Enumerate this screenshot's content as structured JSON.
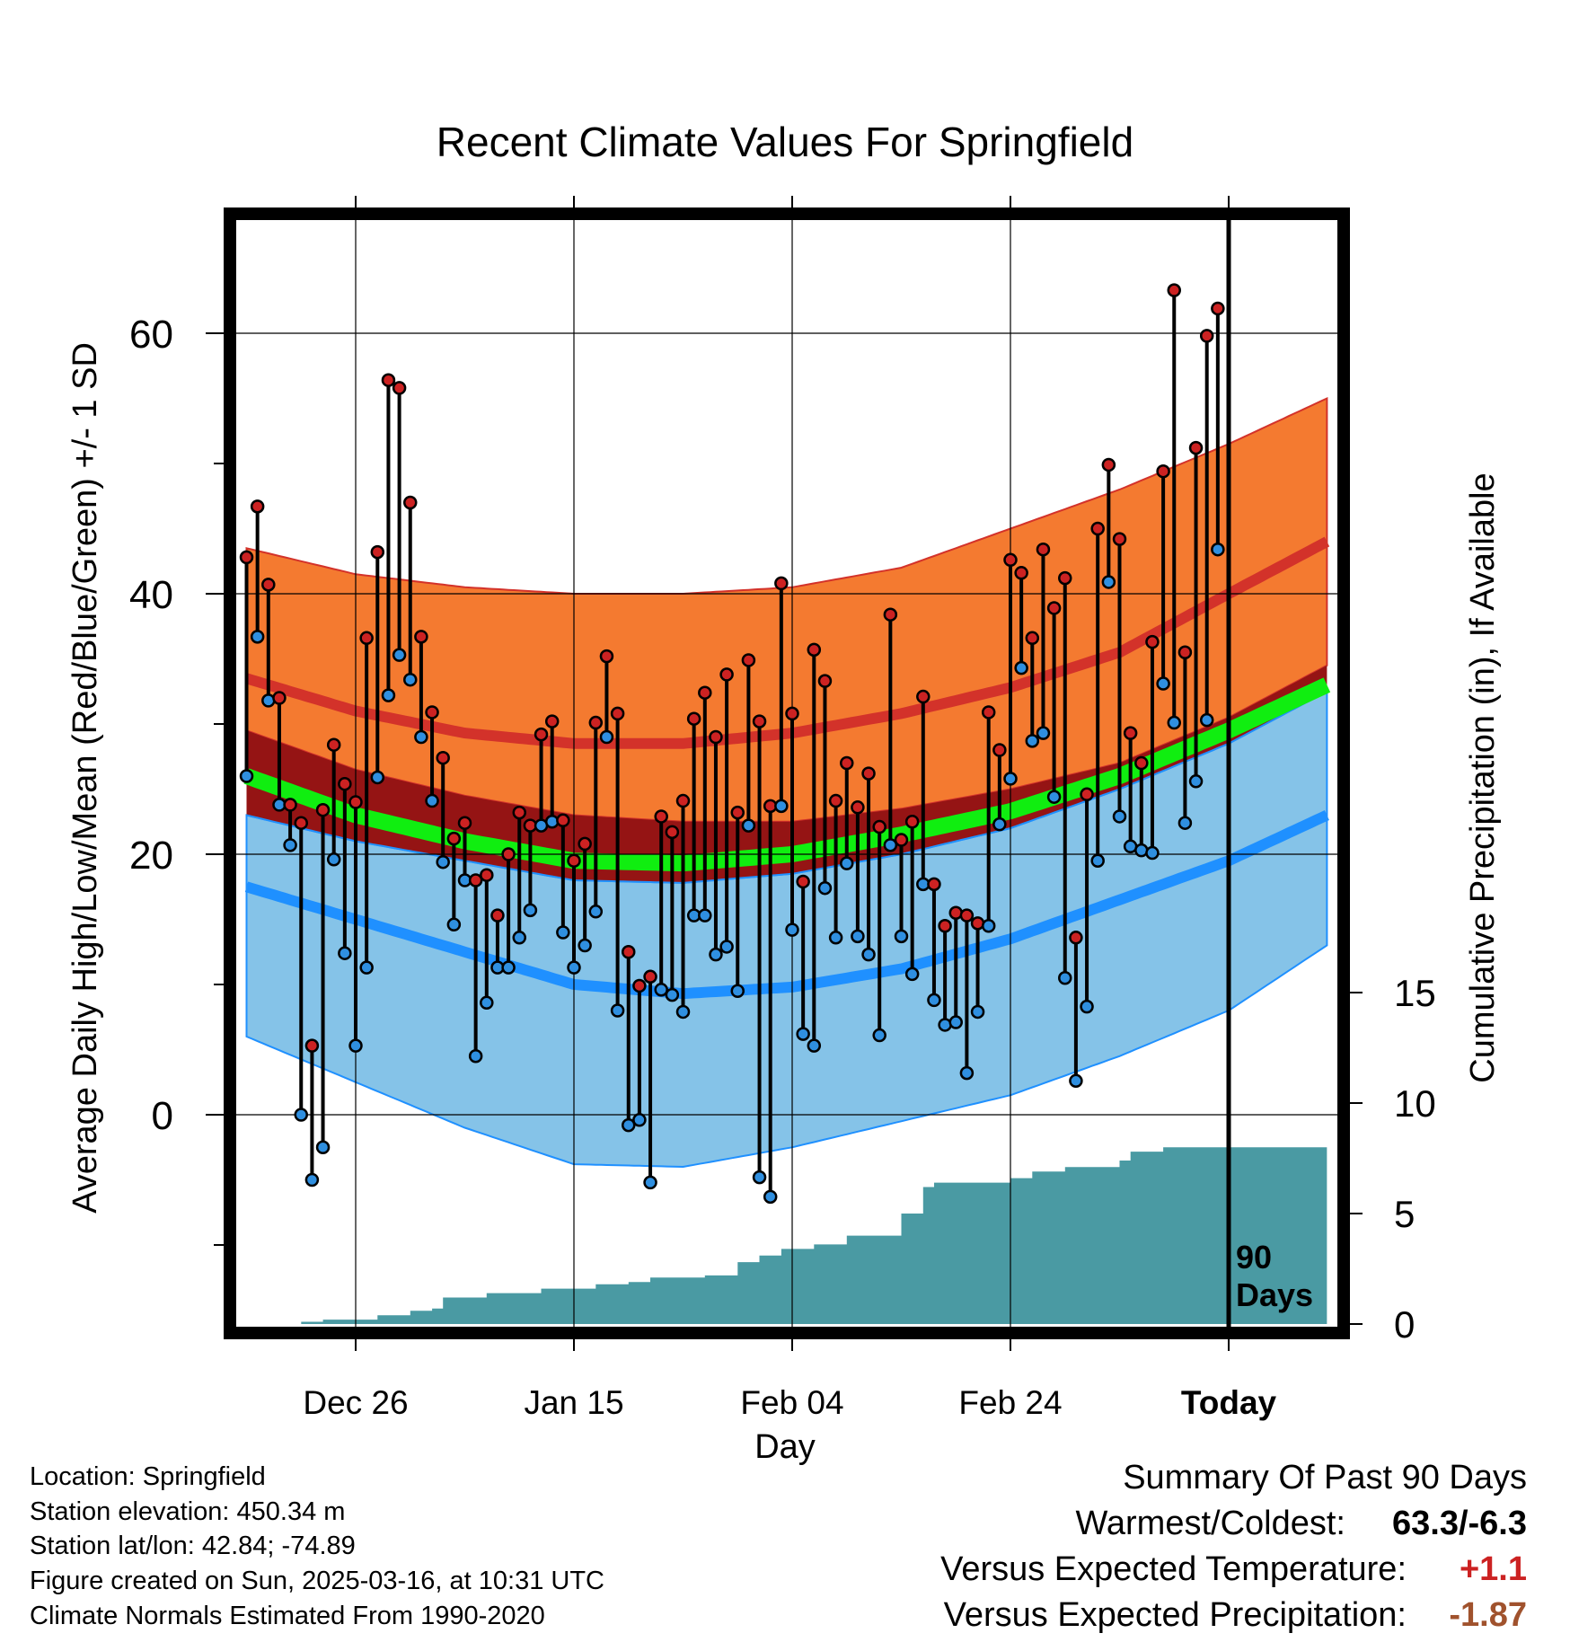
{
  "chart_data": {
    "type": "line",
    "title": "Recent Climate Values For Springfield",
    "xlabel": "Day",
    "ylabel": "Average Daily High/Low/Mean (Red/Blue/Green) +/- 1 SD",
    "y2label": "Cumulative Precipitation (in), If Available",
    "x_tick_labels": [
      "Dec 26",
      "Jan 15",
      "Feb 04",
      "Feb 24",
      "Today"
    ],
    "x_tick_days": [
      -80,
      -60,
      -40,
      -20,
      0
    ],
    "x_range": [
      -90,
      9
    ],
    "ylim": [
      -17,
      68
    ],
    "y_ticks": [
      0,
      20,
      40,
      60
    ],
    "y2_ticks": [
      0,
      5,
      10,
      15
    ],
    "y2lim": [
      0,
      15
    ],
    "today_label": "90\nDays",
    "grid": true,
    "colors": {
      "high_band": "#f47a30",
      "high_line": "#d3322a",
      "mean_band": "#951414",
      "mean_line": "#10ee10",
      "low_band": "#85c3e8",
      "low_line": "#1f90ff",
      "high_point": "#cc2222",
      "low_point": "#2f8fe0",
      "precip": "#4a9aa3"
    },
    "normals": {
      "x": [
        -90,
        -80,
        -70,
        -60,
        -50,
        -40,
        -30,
        -20,
        -10,
        0,
        9
      ],
      "high_mean": [
        33.5,
        31.0,
        29.3,
        28.5,
        28.5,
        29.3,
        30.8,
        32.8,
        35.5,
        40.0,
        44.0
      ],
      "high_sd_upper": [
        43.5,
        41.5,
        40.5,
        40.0,
        40.0,
        40.5,
        42.0,
        45.0,
        48.0,
        51.5,
        55.0
      ],
      "high_sd_lower": [
        29.5,
        26.5,
        24.5,
        23.0,
        22.5,
        22.5,
        23.5,
        25.0,
        27.0,
        30.5,
        34.5
      ],
      "mean": [
        26.0,
        23.0,
        21.0,
        19.5,
        19.3,
        20.0,
        21.5,
        23.3,
        26.0,
        29.5,
        33.0
      ],
      "low_mean": [
        17.5,
        15.0,
        12.5,
        10.0,
        9.3,
        9.8,
        11.2,
        13.5,
        16.5,
        19.5,
        23.0
      ],
      "low_sd_upper": [
        23.0,
        21.0,
        19.5,
        18.0,
        17.8,
        18.5,
        20.0,
        22.0,
        25.0,
        28.5,
        32.5
      ],
      "low_sd_lower": [
        6.0,
        2.5,
        -1.0,
        -3.8,
        -4.0,
        -2.5,
        -0.5,
        1.5,
        4.5,
        8.0,
        13.0
      ]
    },
    "series": [
      {
        "name": "High",
        "values": [
          42.8,
          46.7,
          40.7,
          32.0,
          23.8,
          22.4,
          5.3,
          23.4,
          28.4,
          25.4,
          24.0,
          36.6,
          43.2,
          56.4,
          55.8,
          47.0,
          36.7,
          30.9,
          27.4,
          21.2,
          22.4,
          18.0,
          18.4,
          15.3,
          20.0,
          23.2,
          22.2,
          29.2,
          30.2,
          22.6,
          19.5,
          20.8,
          30.1,
          35.2,
          30.8,
          12.5,
          9.9,
          10.6,
          22.9,
          21.7,
          24.1,
          30.4,
          32.4,
          29.0,
          33.8,
          23.2,
          34.9,
          30.2,
          23.7,
          40.8,
          30.8,
          17.9,
          35.7,
          33.3,
          24.1,
          27.0,
          23.6,
          26.2,
          22.1,
          38.4,
          21.1,
          22.5,
          32.1,
          17.7,
          14.5,
          15.5,
          15.3,
          14.7,
          30.9,
          28.0,
          42.6,
          41.6,
          36.6,
          43.4,
          38.9,
          41.2,
          13.6,
          24.6,
          45.0,
          49.9,
          44.2,
          29.3,
          27.0,
          36.3,
          49.4,
          63.3,
          35.5,
          51.2,
          59.8,
          61.9
        ]
      },
      {
        "name": "Low",
        "values": [
          26.0,
          36.7,
          31.8,
          23.8,
          20.7,
          0.0,
          -5.0,
          -2.5,
          19.6,
          12.4,
          5.3,
          11.3,
          25.9,
          32.2,
          35.3,
          33.4,
          29.0,
          24.1,
          19.4,
          14.6,
          18.0,
          4.5,
          8.6,
          11.3,
          11.3,
          13.6,
          15.7,
          22.2,
          22.5,
          14.0,
          11.3,
          13.0,
          15.6,
          29.0,
          8.0,
          -0.8,
          -0.4,
          -5.2,
          9.6,
          9.2,
          7.9,
          15.3,
          15.3,
          12.3,
          12.9,
          9.5,
          22.2,
          -4.8,
          -6.3,
          23.7,
          14.2,
          6.2,
          5.3,
          17.4,
          13.6,
          19.3,
          13.7,
          12.3,
          6.1,
          20.7,
          13.7,
          10.8,
          17.7,
          8.8,
          6.9,
          7.1,
          3.2,
          7.9,
          14.5,
          22.3,
          25.8,
          34.3,
          28.7,
          29.3,
          24.4,
          10.5,
          2.6,
          8.3,
          19.5,
          40.9,
          22.9,
          20.6,
          20.3,
          20.1,
          33.1,
          30.1,
          22.4,
          25.6,
          30.3,
          43.4
        ]
      },
      {
        "name": "Cumulative Precipitation",
        "x": [
          -90,
          -85,
          -83,
          -78,
          -75,
          -73,
          -72,
          -68,
          -63,
          -58,
          -55,
          -53,
          -48,
          -45,
          -43,
          -41,
          -38,
          -35,
          -30,
          -28,
          -27,
          -26,
          -20,
          -18,
          -15,
          -10,
          -9,
          -6,
          0,
          8
        ],
        "values": [
          0,
          0.1,
          0.2,
          0.4,
          0.6,
          0.7,
          1.2,
          1.4,
          1.6,
          1.8,
          1.9,
          2.1,
          2.2,
          2.8,
          3.1,
          3.4,
          3.6,
          4.0,
          5.0,
          6.2,
          6.4,
          6.4,
          6.6,
          6.9,
          7.1,
          7.4,
          7.8,
          8.0,
          8.0,
          8.0
        ]
      }
    ],
    "today_x": 0
  },
  "info": {
    "location": "Location: Springfield",
    "elevation": "Station elevation: 450.34 m",
    "latlon": "Station lat/lon: 42.84; -74.89",
    "created": "Figure created on Sun, 2025-03-16, at 10:31 UTC",
    "normals": "Climate Normals Estimated From 1990-2020"
  },
  "summary": {
    "title": "Summary Of Past 90 Days",
    "warm_label": "Warmest/Coldest:",
    "warm_value": "63.3/-6.3",
    "temp_label": "Versus Expected Temperature:",
    "temp_value": "+1.1",
    "temp_color": "#cc2222",
    "precip_label": "Versus Expected Precipitation:",
    "precip_value": "-1.87",
    "precip_color": "#a0522d"
  }
}
